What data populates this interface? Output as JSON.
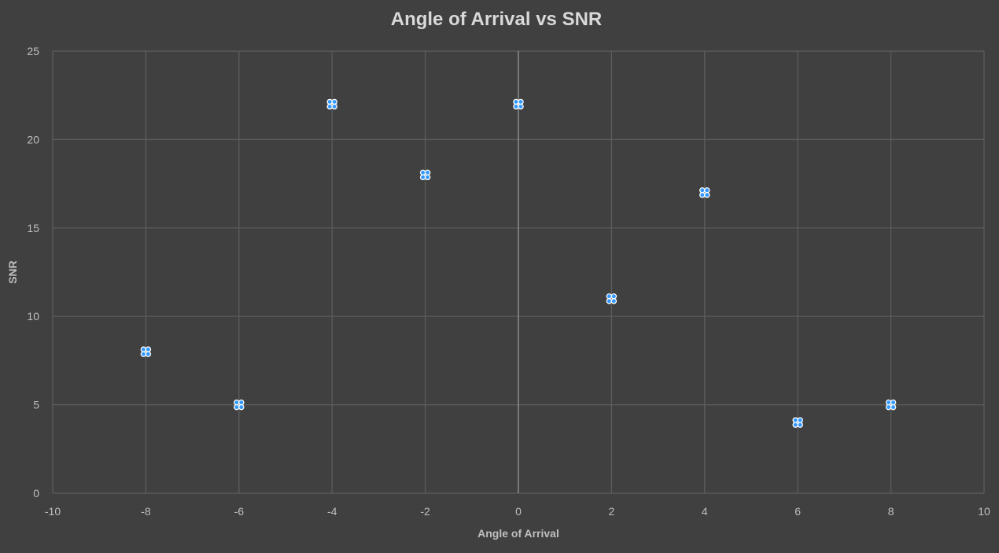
{
  "chart_data": {
    "type": "scatter",
    "title": "Angle of Arrival vs SNR",
    "xlabel": "Angle of Arrival",
    "ylabel": "SNR",
    "xlim": [
      -10,
      10
    ],
    "ylim": [
      0,
      25
    ],
    "xticks": [
      -10,
      -8,
      -6,
      -4,
      -2,
      0,
      2,
      4,
      6,
      8,
      10
    ],
    "yticks": [
      0,
      5,
      10,
      15,
      20,
      25
    ],
    "grid": true,
    "legend": "none",
    "background_color": "#404040",
    "marker_color": "#3399ff",
    "series": [
      {
        "x": [
          -8,
          -6,
          -4,
          -2,
          0,
          2,
          4,
          6,
          8
        ],
        "y": [
          8,
          5,
          22,
          18,
          22,
          11,
          17,
          4,
          5
        ]
      }
    ]
  }
}
